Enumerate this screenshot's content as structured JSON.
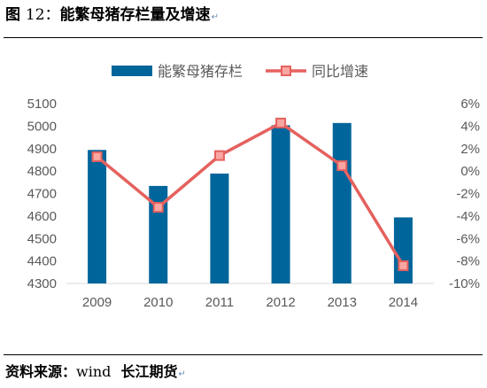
{
  "figure": {
    "title_prefix": "图",
    "title_number": "12：",
    "title_text": "能繁母猪存栏量及增速",
    "para_mark": "↵"
  },
  "source": {
    "label": "资料来源：",
    "name_latin": "wind",
    "name_cn": "长江期货",
    "para_mark": "↵"
  },
  "colors": {
    "bar": "#00659b",
    "line": "#e5615e",
    "marker_fill": "#f8a6a1",
    "axis_text": "#595959"
  },
  "chart_data": {
    "type": "bar",
    "categories": [
      "2009",
      "2010",
      "2011",
      "2012",
      "2013",
      "2014"
    ],
    "series": [
      {
        "name": "能繁母猪存栏",
        "type": "bar",
        "axis": "left",
        "values": [
          4890,
          4730,
          4785,
          5000,
          5010,
          4590
        ]
      },
      {
        "name": "同比增速",
        "type": "line",
        "axis": "right",
        "values": [
          1.2,
          -3.3,
          1.3,
          4.2,
          0.4,
          -8.5
        ]
      }
    ],
    "y_left": {
      "range": [
        4300,
        5100
      ],
      "ticks": [
        "4300",
        "4400",
        "4500",
        "4600",
        "4700",
        "4800",
        "4900",
        "5000",
        "5100"
      ]
    },
    "y_right": {
      "range": [
        -10,
        6
      ],
      "ticks": [
        "-10%",
        "-8%",
        "-6%",
        "-4%",
        "-2%",
        "0%",
        "2%",
        "4%",
        "6%"
      ]
    },
    "legend_position": "top-center",
    "grid": false
  }
}
